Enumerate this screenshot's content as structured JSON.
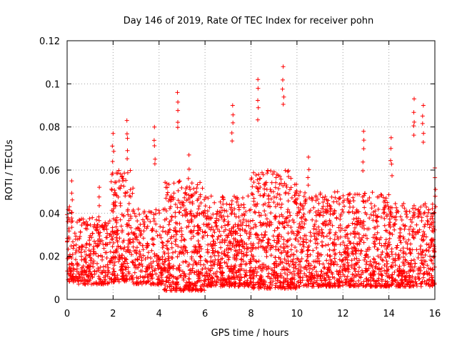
{
  "chart_data": {
    "type": "scatter",
    "title": "Day 146 of 2019, Rate Of TEC Index for receiver pohn",
    "xlabel": "GPS time / hours",
    "ylabel": "ROTI / TECUs",
    "xlim": [
      0,
      16
    ],
    "ylim": [
      0,
      0.12
    ],
    "xticks": [
      0,
      2,
      4,
      6,
      8,
      10,
      12,
      14,
      16
    ],
    "yticks": [
      0,
      0.02,
      0.04,
      0.06,
      0.08,
      0.1,
      0.12
    ],
    "xtick_labels": [
      "0",
      "2",
      "4",
      "6",
      "8",
      "10",
      "12",
      "14",
      "16"
    ],
    "ytick_labels": [
      "0",
      "0.02",
      "0.04",
      "0.06",
      "0.08",
      "0.1",
      "0.12"
    ],
    "grid": true,
    "marker": "+",
    "color": "#ff0000",
    "series": [
      {
        "name": "ROTI",
        "peaks": [
          {
            "x": 0.2,
            "y": 0.055
          },
          {
            "x": 1.4,
            "y": 0.052
          },
          {
            "x": 2.0,
            "y": 0.077
          },
          {
            "x": 2.6,
            "y": 0.083
          },
          {
            "x": 3.8,
            "y": 0.08
          },
          {
            "x": 4.8,
            "y": 0.096
          },
          {
            "x": 5.3,
            "y": 0.067
          },
          {
            "x": 7.2,
            "y": 0.09
          },
          {
            "x": 8.3,
            "y": 0.102
          },
          {
            "x": 9.4,
            "y": 0.108
          },
          {
            "x": 10.5,
            "y": 0.066
          },
          {
            "x": 12.9,
            "y": 0.078
          },
          {
            "x": 14.1,
            "y": 0.075
          },
          {
            "x": 15.1,
            "y": 0.093
          },
          {
            "x": 15.5,
            "y": 0.09
          },
          {
            "x": 16.0,
            "y": 0.061
          }
        ],
        "bands": [
          {
            "x0": 0.0,
            "x1": 0.5,
            "lo": 0.008,
            "hi": 0.045,
            "n": 90
          },
          {
            "x0": 0.5,
            "x1": 1.9,
            "lo": 0.007,
            "hi": 0.038,
            "n": 240
          },
          {
            "x0": 1.9,
            "x1": 2.9,
            "lo": 0.008,
            "hi": 0.06,
            "n": 230
          },
          {
            "x0": 2.9,
            "x1": 4.2,
            "lo": 0.007,
            "hi": 0.042,
            "n": 220
          },
          {
            "x0": 4.2,
            "x1": 6.0,
            "lo": 0.004,
            "hi": 0.055,
            "n": 420
          },
          {
            "x0": 6.0,
            "x1": 8.0,
            "lo": 0.006,
            "hi": 0.048,
            "n": 470
          },
          {
            "x0": 8.0,
            "x1": 10.0,
            "lo": 0.005,
            "hi": 0.06,
            "n": 470
          },
          {
            "x0": 10.0,
            "x1": 12.0,
            "lo": 0.006,
            "hi": 0.05,
            "n": 420
          },
          {
            "x0": 12.0,
            "x1": 14.0,
            "lo": 0.006,
            "hi": 0.05,
            "n": 420
          },
          {
            "x0": 14.0,
            "x1": 16.0,
            "lo": 0.006,
            "hi": 0.045,
            "n": 400
          }
        ]
      }
    ]
  }
}
